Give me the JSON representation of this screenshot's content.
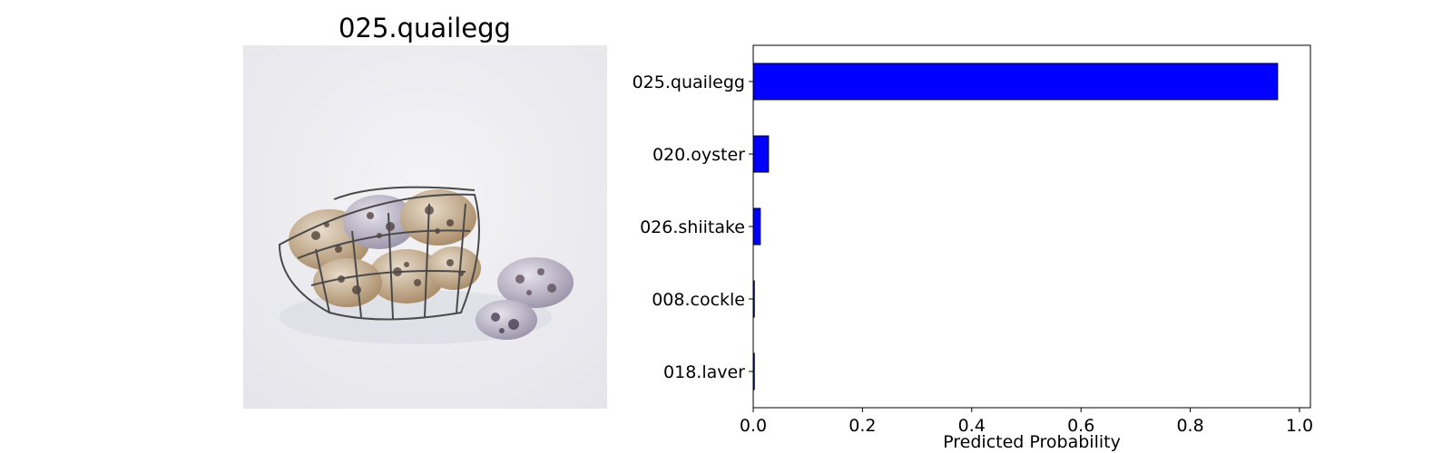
{
  "image_panel": {
    "title": "025.quailegg",
    "photo_icon": "quail-eggs-in-wire-basket-photo"
  },
  "chart_data": {
    "type": "bar",
    "orientation": "horizontal",
    "categories": [
      "025.quailegg",
      "020.oyster",
      "026.shiitake",
      "008.cockle",
      "018.laver"
    ],
    "values": [
      0.96,
      0.028,
      0.013,
      0.002,
      0.002
    ],
    "xlabel": "Predicted Probability",
    "ylabel": "",
    "xlim": [
      0.0,
      1.0
    ],
    "xticks": [
      "0.0",
      "0.2",
      "0.4",
      "0.6",
      "0.8",
      "1.0"
    ],
    "bar_color": "#0000ff",
    "grid": false
  }
}
